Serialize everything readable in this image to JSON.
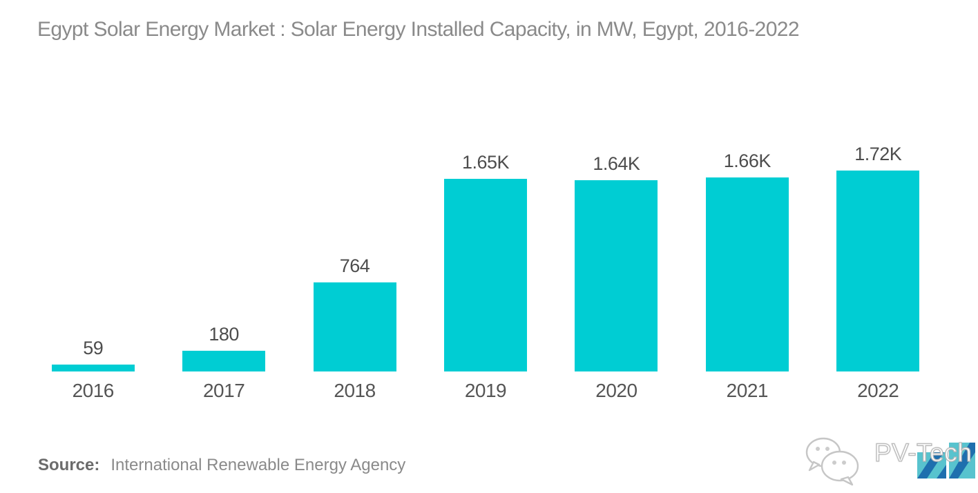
{
  "title": "Egypt Solar Energy Market : Solar Energy Installed Capacity, in MW, Egypt, 2016-2022",
  "source": {
    "label": "Source:",
    "text": "International Renewable Energy Agency"
  },
  "brand": {
    "name": "PV-Tech",
    "icons": [
      "wechat-icon",
      "pvtech-logo-mark"
    ]
  },
  "colors": {
    "bar": "#00CDD3",
    "title": "#8A8A8A",
    "value_label": "#4D4D4D",
    "axis_label": "#555555",
    "source_label": "#6B6B6B",
    "source_text": "#8A8A8A",
    "logo_teal": "#58C3CE",
    "logo_blue": "#1E6FAE"
  },
  "chart_data": {
    "type": "bar",
    "title": "Egypt Solar Energy Market : Solar Energy Installed Capacity, in MW, Egypt, 2016-2022",
    "categories": [
      "2016",
      "2017",
      "2018",
      "2019",
      "2020",
      "2021",
      "2022"
    ],
    "values": [
      59,
      180,
      764,
      1650,
      1640,
      1660,
      1720
    ],
    "value_labels": [
      "59",
      "180",
      "764",
      "1.65K",
      "1.64K",
      "1.66K",
      "1.72K"
    ],
    "unit": "MW",
    "xlabel": "",
    "ylabel": "",
    "ylim": [
      0,
      1720
    ],
    "grid": false,
    "legend": false,
    "axes_hidden": true
  }
}
